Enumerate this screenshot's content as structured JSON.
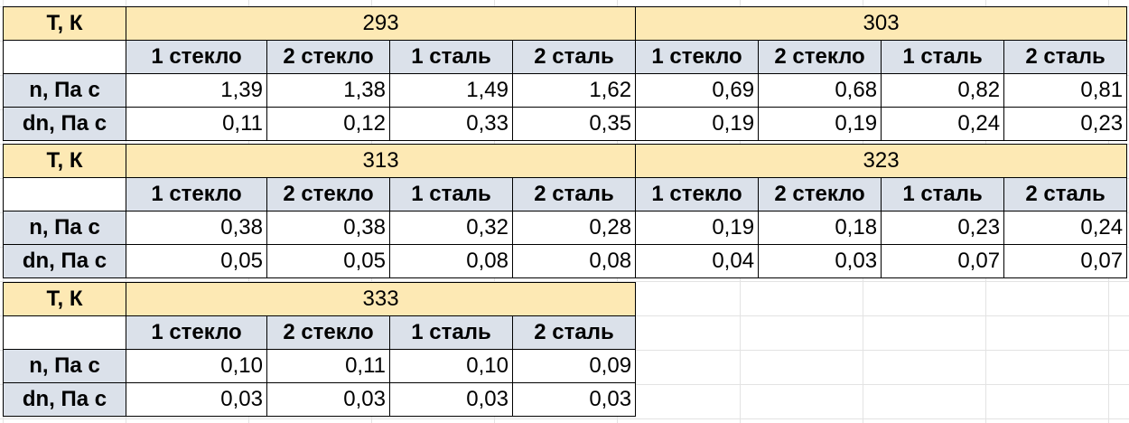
{
  "row_labels": {
    "temperature": "T, К",
    "n": "n, Па с",
    "dn": "dn, Па с"
  },
  "blocks": [
    {
      "temps": [
        "293",
        "303"
      ],
      "columns": [
        "1 стекло",
        "2 стекло",
        "1 сталь",
        "2 сталь",
        "1 стекло",
        "2 стекло",
        "1 сталь",
        "2 сталь"
      ],
      "n": [
        "1,39",
        "1,38",
        "1,49",
        "1,62",
        "0,69",
        "0,68",
        "0,82",
        "0,81"
      ],
      "dn": [
        "0,11",
        "0,12",
        "0,33",
        "0,35",
        "0,19",
        "0,19",
        "0,24",
        "0,23"
      ]
    },
    {
      "temps": [
        "313",
        "323"
      ],
      "columns": [
        "1 стекло",
        "2 стекло",
        "1 сталь",
        "2 сталь",
        "1 стекло",
        "2 стекло",
        "1 сталь",
        "2 сталь"
      ],
      "n": [
        "0,38",
        "0,38",
        "0,32",
        "0,28",
        "0,19",
        "0,18",
        "0,23",
        "0,24"
      ],
      "dn": [
        "0,05",
        "0,05",
        "0,08",
        "0,08",
        "0,04",
        "0,03",
        "0,07",
        "0,07"
      ]
    },
    {
      "temps": [
        "333"
      ],
      "columns": [
        "1 стекло",
        "2 стекло",
        "1 сталь",
        "2 сталь"
      ],
      "n": [
        "0,10",
        "0,11",
        "0,10",
        "0,09"
      ],
      "dn": [
        "0,03",
        "0,03",
        "0,03",
        "0,03"
      ]
    }
  ]
}
